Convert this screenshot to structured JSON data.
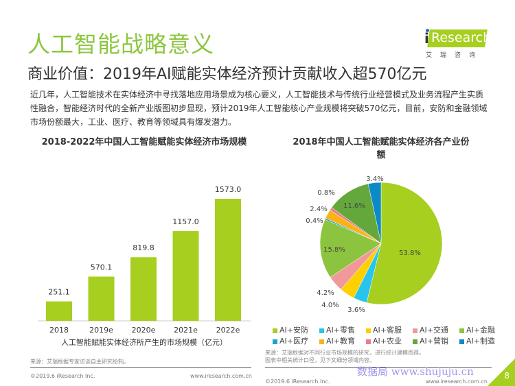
{
  "header": {
    "title": "人工智能战略意义",
    "subtitle": "商业价值：2019年AI赋能实体经济预计贡献收入超570亿元",
    "logo_text": "iResearch",
    "logo_cn": "艾瑞咨询"
  },
  "intro": "近几年，人工智能技术在实体经济中寻找落地应用场景成为核心要义，人工智能技术与传统行业经营模式及业务流程产生实质性融合，智能经济时代的全新产业版图初步显现，预计2019年人工智能核心产业规模将突破570亿元，目前，安防和金融领域市场份额最大，工业、医疗、教育等领域具有爆发潜力。",
  "chart_data": [
    {
      "type": "bar",
      "title": "2018-2022年中国人工智能赋能实体经济市场规模",
      "xlabel": "人工智能赋能实体经济所产生的市场规模（亿元）",
      "categories": [
        "2018",
        "2019e",
        "2020e",
        "2021e",
        "2022e"
      ],
      "values": [
        251.1,
        570.1,
        819.8,
        1157.0,
        1573.0
      ],
      "labels": [
        "251.1",
        "570.1",
        "819.8",
        "1157.0",
        "1573.0"
      ],
      "color": "#a6cf1f"
    },
    {
      "type": "pie",
      "title": "2018年中国人工智能赋能实体经济各产业份额",
      "legend": "bottom",
      "slices": [
        {
          "name": "AI+安防",
          "value": 53.8,
          "label": "53.8%",
          "color": "#a6cf1f"
        },
        {
          "name": "AI+零售",
          "value": 3.6,
          "label": "3.6%",
          "color": "#29c4ee"
        },
        {
          "name": "AI+客服",
          "value": 4.0,
          "label": "4.0%",
          "color": "#fdd000"
        },
        {
          "name": "AI+交通",
          "value": 4.2,
          "label": "4.2%",
          "color": "#f19999"
        },
        {
          "name": "AI+金融",
          "value": 15.8,
          "label": "15.8%",
          "color": "#8dc43f"
        },
        {
          "name": "AI+医疗",
          "value": 0.4,
          "label": "0.4%",
          "color": "#1aa5cf"
        },
        {
          "name": "AI+教育",
          "value": 2.4,
          "label": "2.4%",
          "color": "#f9b314"
        },
        {
          "name": "AI+农业",
          "value": 0.8,
          "label": "0.8%",
          "color": "#e97f86"
        },
        {
          "name": "AI+营销",
          "value": 11.6,
          "label": "11.6%",
          "color": "#64a83c"
        },
        {
          "name": "AI+制造",
          "value": 3.4,
          "label": "3.4%",
          "color": "#0b8ac9"
        }
      ]
    }
  ],
  "sources": {
    "left": "来源：艾瑞根据专家访谈自主研究绘制。",
    "right1": "来源：艾瑞根据对不同行业市场规模的研究，进行统计建模而得。",
    "right2": "图表中相关统计口径，见下文细分领域内容。"
  },
  "footer": {
    "copyright": "©2019.6 iResearch Inc.",
    "url": "www.iresearch.com.cn",
    "page": "8",
    "watermark": "数据局 www.shujuju.cn"
  }
}
